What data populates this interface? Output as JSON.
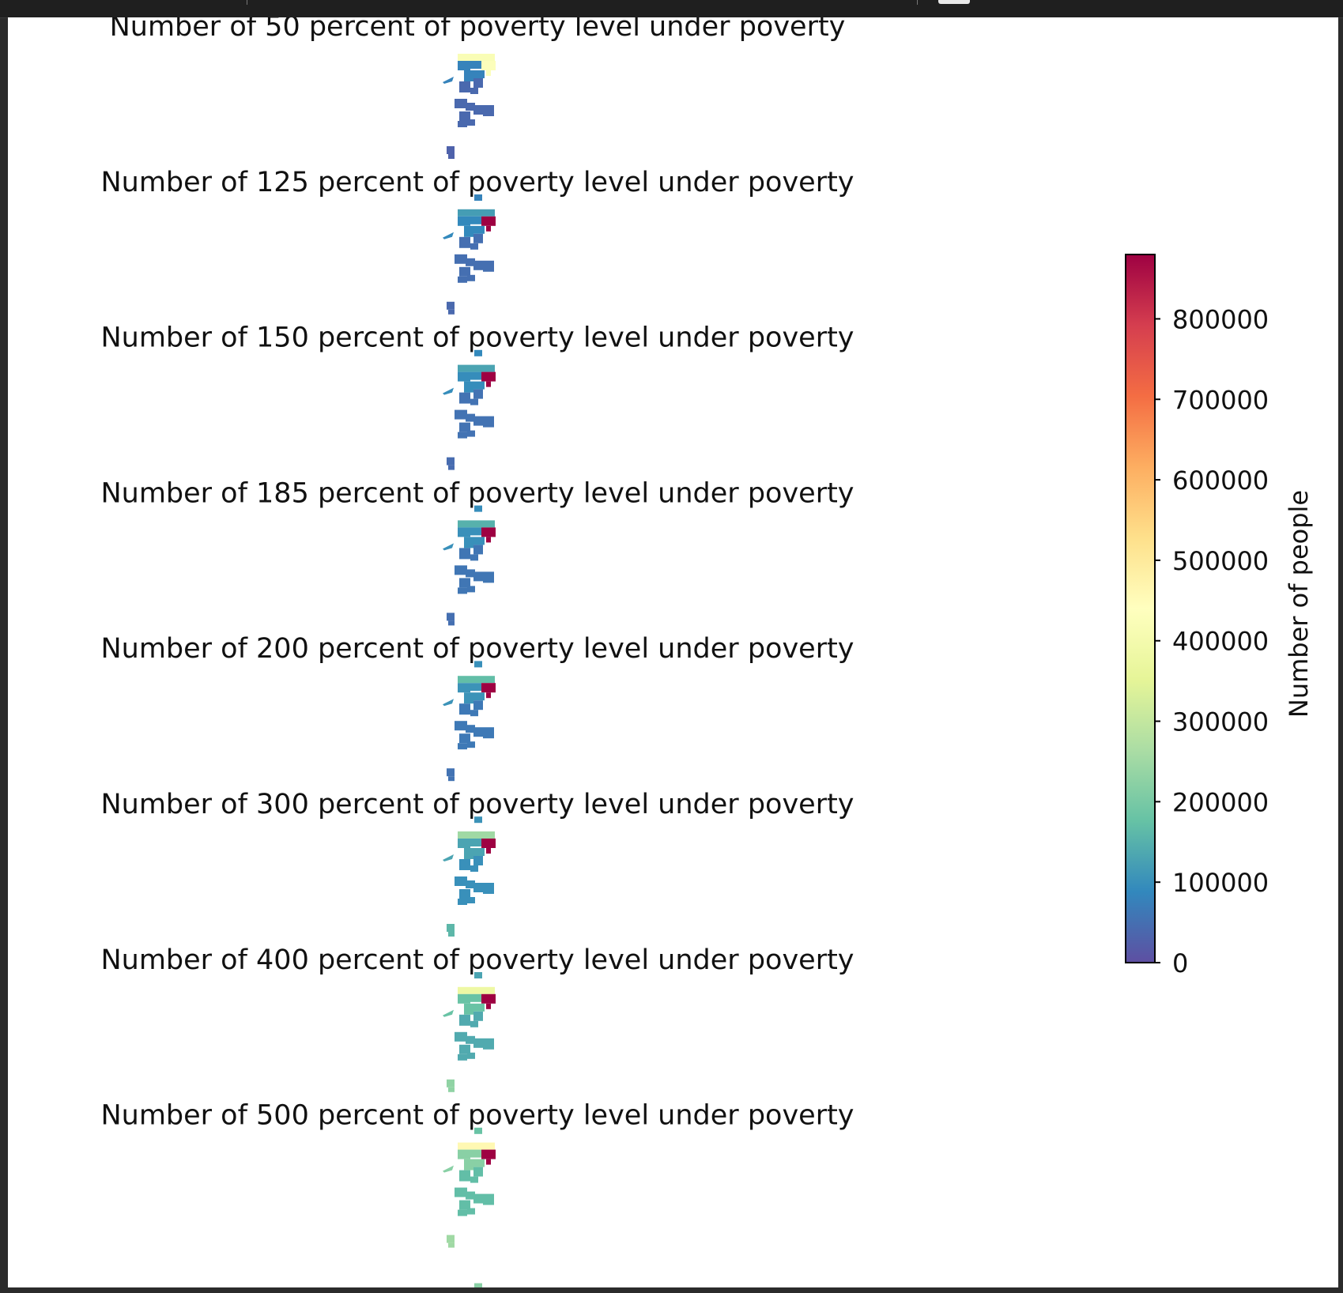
{
  "chart_data": {
    "type": "choropleth-map",
    "panel_titles": [
      "Number of 50 percent of poverty level under poverty",
      "Number of 125 percent of poverty level under poverty",
      "Number of 150 percent of poverty level under poverty",
      "Number of 185 percent of poverty level under poverty",
      "Number of 200 percent of poverty level under poverty",
      "Number of 300 percent of poverty level under poverty",
      "Number of 400 percent of poverty level under poverty",
      "Number of 500 percent of poverty level under poverty"
    ],
    "colormap": "Spectral_r",
    "colormap_stops": [
      "#5e4fa2",
      "#3288bd",
      "#66c2a5",
      "#abdda4",
      "#e6f598",
      "#ffffbf",
      "#fee08b",
      "#fdae61",
      "#f46d43",
      "#d53e4f",
      "#9e0142"
    ],
    "colorbar": {
      "label": "Number of people",
      "vmin": 0,
      "vmax": 880000,
      "ticks": [
        0,
        100000,
        200000,
        300000,
        400000,
        500000,
        600000,
        700000,
        800000
      ],
      "tick_labels": [
        "0",
        "100000",
        "200000",
        "300000",
        "400000",
        "500000",
        "600000",
        "700000",
        "800000"
      ]
    },
    "panel_levels": [
      {
        "top_band": 420000,
        "hotspot": 430000,
        "north": 80000,
        "central": 40000,
        "south": 30000
      },
      {
        "top_band": 120000,
        "hotspot": 880000,
        "north": 90000,
        "central": 50000,
        "south": 40000
      },
      {
        "top_band": 130000,
        "hotspot": 880000,
        "north": 95000,
        "central": 55000,
        "south": 45000
      },
      {
        "top_band": 150000,
        "hotspot": 880000,
        "north": 100000,
        "central": 60000,
        "south": 50000
      },
      {
        "top_band": 170000,
        "hotspot": 880000,
        "north": 105000,
        "central": 65000,
        "south": 55000
      },
      {
        "top_band": 250000,
        "hotspot": 880000,
        "north": 130000,
        "central": 100000,
        "south": 160000
      },
      {
        "top_band": 380000,
        "hotspot": 880000,
        "north": 180000,
        "central": 140000,
        "south": 230000
      },
      {
        "top_band": 460000,
        "hotspot": 880000,
        "north": 220000,
        "central": 170000,
        "south": 250000
      }
    ]
  }
}
